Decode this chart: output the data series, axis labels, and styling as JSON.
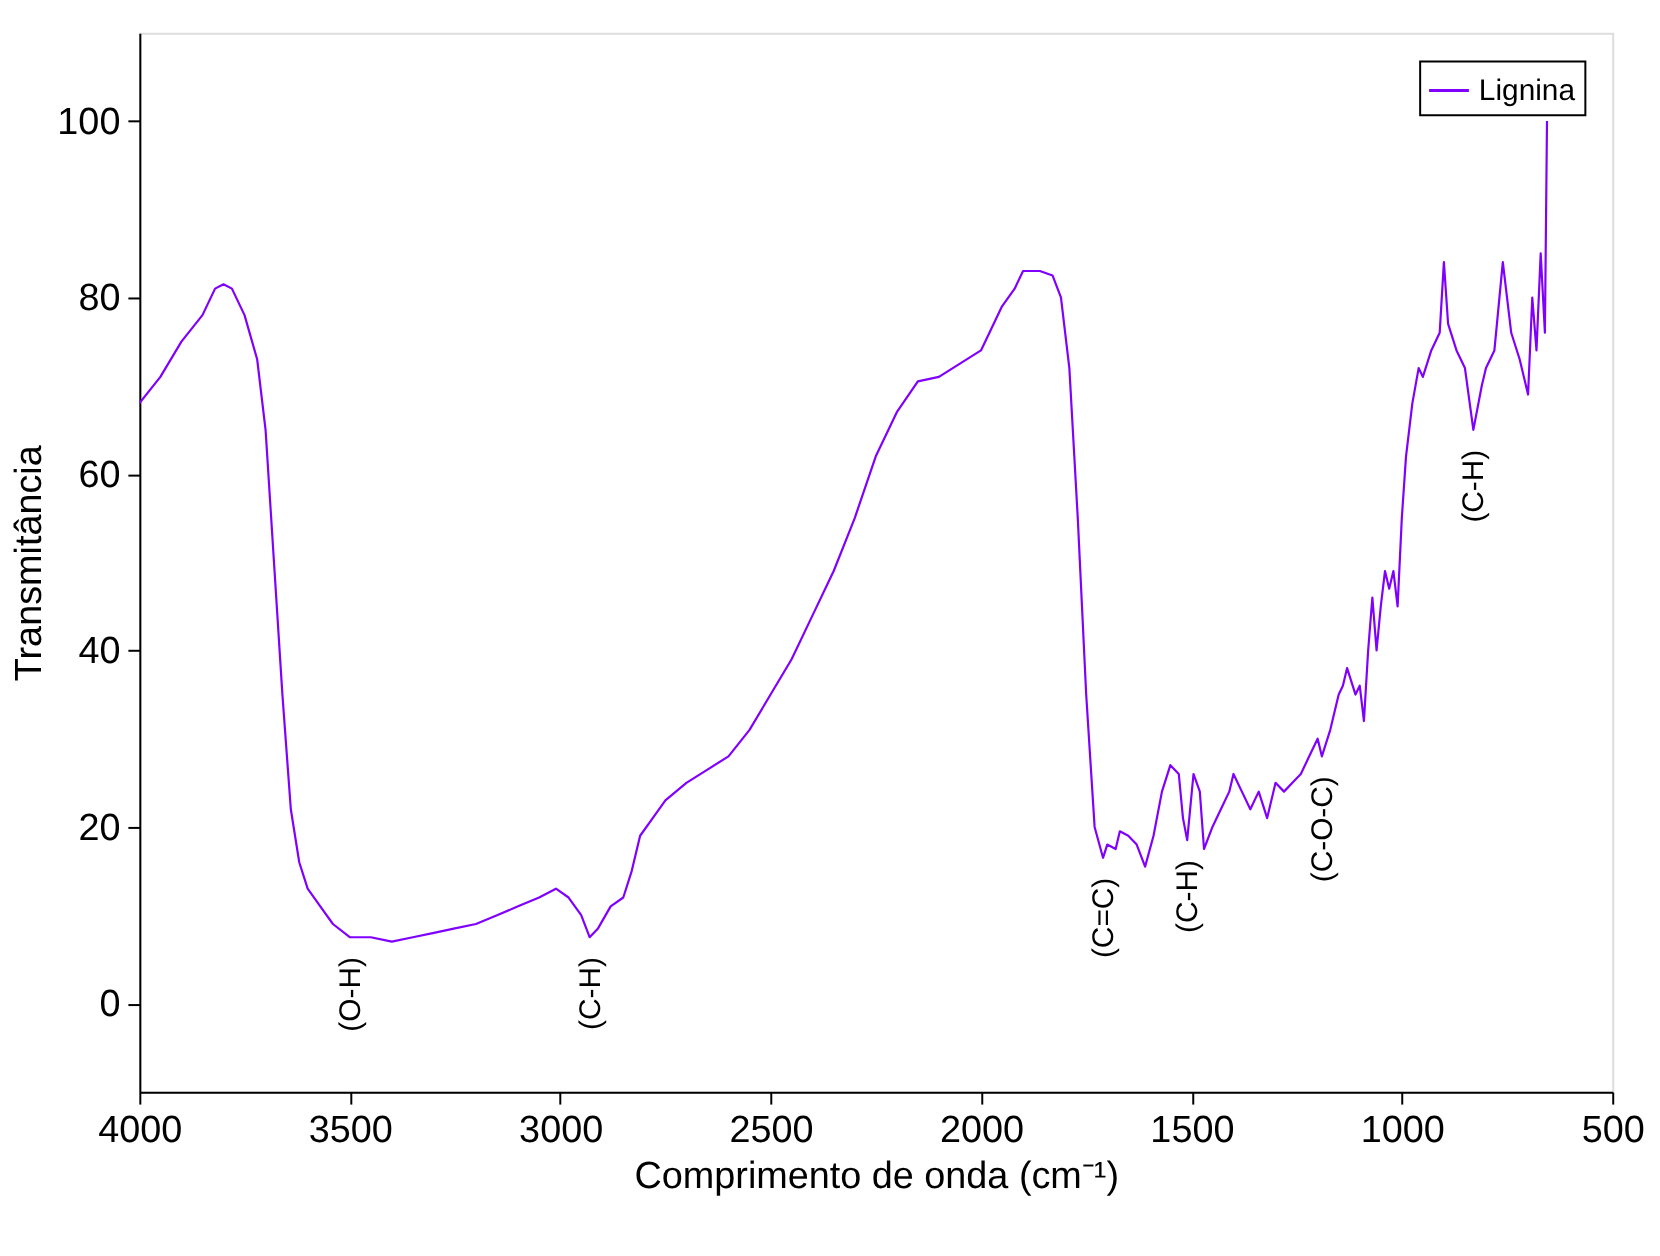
{
  "chart_data": {
    "type": "line",
    "xlabel": "Comprimento de onda (cm⁻¹)",
    "ylabel": "Transmitância",
    "xlim": [
      4000,
      500
    ],
    "xticks": [
      4000,
      3500,
      3000,
      2500,
      2000,
      1500,
      1000,
      500
    ],
    "ylim": [
      -10,
      110
    ],
    "yticks": [
      0,
      20,
      40,
      60,
      80,
      100
    ],
    "grid": false,
    "legend": "top right",
    "line_style": "solid",
    "marker": "none",
    "series": [
      {
        "name": "Lignina",
        "color": "#8000ff",
        "x": [
          4000,
          3950,
          3900,
          3850,
          3820,
          3800,
          3780,
          3750,
          3720,
          3700,
          3680,
          3660,
          3640,
          3620,
          3600,
          3570,
          3540,
          3500,
          3450,
          3400,
          3350,
          3300,
          3250,
          3200,
          3150,
          3100,
          3050,
          3010,
          2980,
          2950,
          2930,
          2910,
          2880,
          2850,
          2830,
          2810,
          2780,
          2750,
          2700,
          2650,
          2600,
          2550,
          2500,
          2450,
          2400,
          2350,
          2300,
          2250,
          2200,
          2150,
          2100,
          2050,
          2000,
          1950,
          1920,
          1900,
          1860,
          1830,
          1810,
          1790,
          1770,
          1750,
          1730,
          1710,
          1700,
          1680,
          1670,
          1650,
          1630,
          1610,
          1590,
          1570,
          1550,
          1530,
          1520,
          1510,
          1495,
          1480,
          1470,
          1450,
          1430,
          1410,
          1400,
          1380,
          1360,
          1340,
          1320,
          1300,
          1280,
          1260,
          1240,
          1220,
          1200,
          1190,
          1170,
          1150,
          1140,
          1130,
          1110,
          1100,
          1090,
          1080,
          1070,
          1060,
          1050,
          1040,
          1030,
          1020,
          1010,
          1000,
          990,
          975,
          960,
          950,
          930,
          910,
          900,
          890,
          870,
          850,
          830,
          810,
          800,
          780,
          760,
          740,
          720,
          700,
          690,
          680,
          670,
          660,
          655
        ],
        "values": [
          68,
          71,
          75,
          78,
          81,
          81.5,
          81,
          78,
          73,
          65,
          50,
          35,
          22,
          16,
          13,
          11,
          9,
          7.5,
          7.5,
          7,
          7.5,
          8,
          8.5,
          9,
          10,
          11,
          12,
          13,
          12,
          10,
          7.5,
          8.5,
          11,
          12,
          15,
          19,
          21,
          23,
          25,
          26.5,
          28,
          31,
          35,
          39,
          44,
          49,
          55,
          62,
          67,
          70.5,
          71,
          72.5,
          74,
          79,
          81,
          83,
          83,
          82.5,
          80,
          72,
          55,
          35,
          20,
          16.5,
          18,
          17.5,
          19.5,
          19,
          18,
          15.5,
          19,
          24,
          27,
          26,
          21,
          18.5,
          26,
          24,
          17.5,
          20,
          22,
          24,
          26,
          24,
          22,
          24,
          21,
          25,
          24,
          25,
          26,
          28,
          30,
          28,
          31,
          35,
          36,
          38,
          35,
          36,
          32,
          40,
          46,
          40,
          45,
          49,
          47,
          49,
          45,
          55,
          62,
          68,
          72,
          71,
          74,
          76,
          84,
          77,
          74,
          72,
          65,
          70,
          72,
          74,
          84,
          76,
          73,
          69,
          80,
          74,
          85,
          76,
          100
        ]
      }
    ],
    "annotations": [
      {
        "text": "(O-H)",
        "x": 3500,
        "y": 7.5
      },
      {
        "text": "(C-H)",
        "x": 2930,
        "y": 7.5
      },
      {
        "text": "(C=C)",
        "x": 1710,
        "y": 16.5
      },
      {
        "text": "(C-H)",
        "x": 1510,
        "y": 18.5
      },
      {
        "text": "(C-O-C)",
        "x": 1190,
        "y": 28
      },
      {
        "text": "(C-H)",
        "x": 830,
        "y": 65
      }
    ]
  }
}
